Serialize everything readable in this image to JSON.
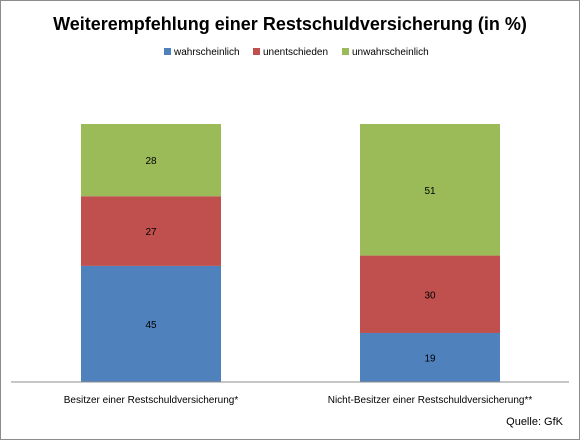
{
  "chart_data": {
    "type": "bar",
    "stacked": true,
    "title": "Weiterempfehlung einer Restschuldversicherung  (in %)",
    "categories": [
      "Besitzer einer Restschuldversicherung*",
      "Nicht-Besitzer einer Restschuldversicherung**"
    ],
    "series": [
      {
        "name": "wahrscheinlich",
        "color": "#4f81bd",
        "values": [
          45,
          19
        ]
      },
      {
        "name": "unentschieden",
        "color": "#c0504d",
        "values": [
          27,
          30
        ]
      },
      {
        "name": "unwahrscheinlich",
        "color": "#9bbb59",
        "values": [
          28,
          51
        ]
      }
    ],
    "ylim": [
      0,
      100
    ],
    "grid": false,
    "legend": "top",
    "source": "Quelle: GfK"
  }
}
